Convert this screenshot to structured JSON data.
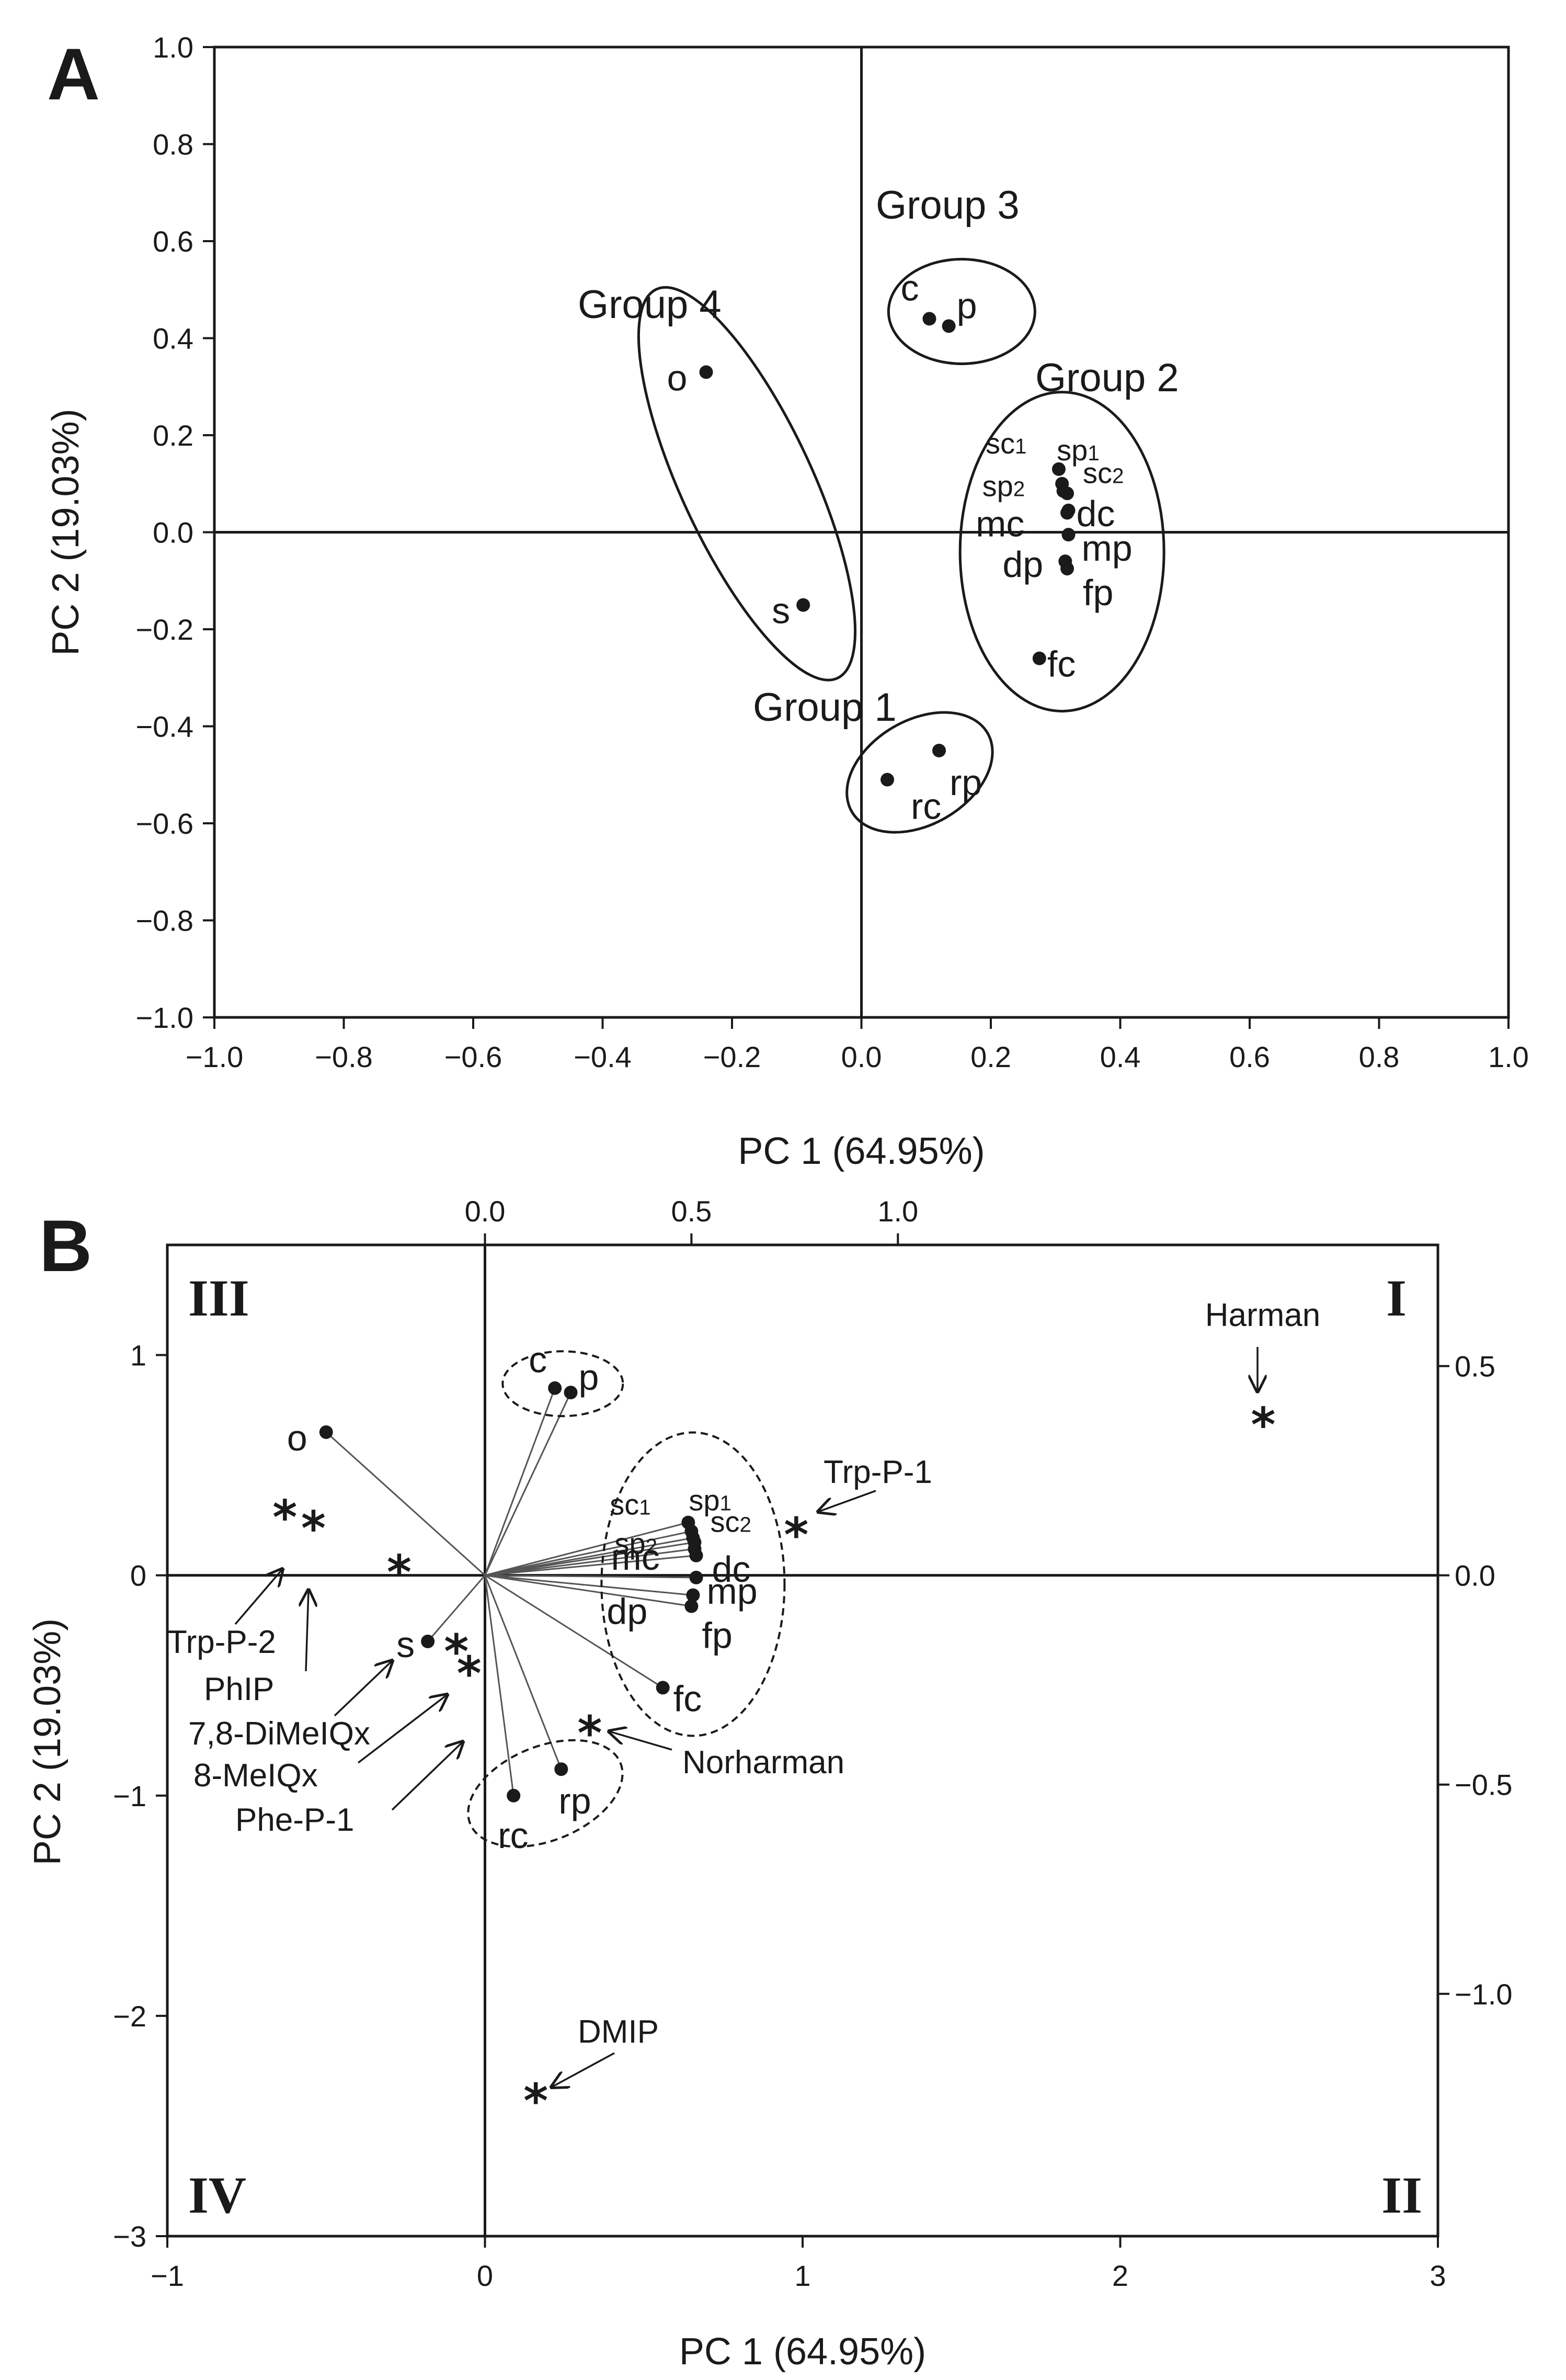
{
  "chart_data": [
    {
      "panel": "A",
      "type": "scatter",
      "xlabel": "PC 1 (64.95%)",
      "ylabel": "PC 2 (19.03%)",
      "xlim": [
        -1.0,
        1.0
      ],
      "ylim": [
        -1.0,
        1.0
      ],
      "x_ticks": [
        "−1.0",
        "−0.8",
        "−0.6",
        "−0.4",
        "−0.2",
        "0.0",
        "0.2",
        "0.4",
        "0.6",
        "0.8",
        "1.0"
      ],
      "y_ticks": [
        "1.0",
        "0.8",
        "0.6",
        "0.4",
        "0.2",
        "0.0",
        "−0.2",
        "−0.4",
        "−0.6",
        "−0.8",
        "−1.0"
      ],
      "points": [
        {
          "label": "c",
          "x": 0.105,
          "y": 0.44
        },
        {
          "label": "p",
          "x": 0.135,
          "y": 0.425
        },
        {
          "label": "o",
          "x": -0.24,
          "y": 0.33
        },
        {
          "label": "s",
          "x": -0.09,
          "y": -0.15
        },
        {
          "label": "sc1",
          "x": 0.305,
          "y": 0.13
        },
        {
          "label": "sp1",
          "x": 0.31,
          "y": 0.1
        },
        {
          "label": "sp2",
          "x": 0.312,
          "y": 0.085
        },
        {
          "label": "sc2",
          "x": 0.318,
          "y": 0.08
        },
        {
          "label": "dc",
          "x": 0.32,
          "y": 0.045
        },
        {
          "label": "mc",
          "x": 0.318,
          "y": 0.04
        },
        {
          "label": "mp",
          "x": 0.32,
          "y": -0.005
        },
        {
          "label": "dp",
          "x": 0.315,
          "y": -0.06
        },
        {
          "label": "fp",
          "x": 0.318,
          "y": -0.075
        },
        {
          "label": "fc",
          "x": 0.275,
          "y": -0.26
        },
        {
          "label": "rc",
          "x": 0.04,
          "y": -0.51
        },
        {
          "label": "rp",
          "x": 0.12,
          "y": -0.45
        }
      ],
      "groups": [
        "Group 1",
        "Group 2",
        "Group 3",
        "Group 4"
      ]
    },
    {
      "panel": "B",
      "type": "scatter",
      "xlabel": "PC 1 (64.95%)",
      "ylabel": "PC 2 (19.03%)",
      "xlim": [
        -1,
        3
      ],
      "ylim": [
        -3,
        1.5
      ],
      "x_ticks": [
        "−1",
        "0",
        "1",
        "2",
        "3"
      ],
      "y_ticks": [
        "1",
        "0",
        "−1",
        "−2",
        "−3"
      ],
      "top_ticks": [
        "0.0",
        "0.5",
        "1.0"
      ],
      "right_ticks": [
        "0.5",
        "0.0",
        "−0.5",
        "−1.0"
      ],
      "quadrants": [
        "I",
        "II",
        "III",
        "IV"
      ],
      "points": [
        {
          "label": "c",
          "x": 0.22,
          "y": 0.85
        },
        {
          "label": "p",
          "x": 0.27,
          "y": 0.83
        },
        {
          "label": "o",
          "x": -0.5,
          "y": 0.65
        },
        {
          "label": "s",
          "x": -0.18,
          "y": -0.3
        },
        {
          "label": "sc1",
          "x": 0.64,
          "y": 0.24
        },
        {
          "label": "sp1",
          "x": 0.65,
          "y": 0.2
        },
        {
          "label": "sp2",
          "x": 0.655,
          "y": 0.17
        },
        {
          "label": "sc2",
          "x": 0.66,
          "y": 0.15
        },
        {
          "label": "dc",
          "x": 0.665,
          "y": 0.09
        },
        {
          "label": "mc",
          "x": 0.66,
          "y": 0.12
        },
        {
          "label": "mp",
          "x": 0.665,
          "y": -0.01
        },
        {
          "label": "dp",
          "x": 0.655,
          "y": -0.09
        },
        {
          "label": "fp",
          "x": 0.65,
          "y": -0.14
        },
        {
          "label": "fc",
          "x": 0.56,
          "y": -0.51
        },
        {
          "label": "rc",
          "x": 0.09,
          "y": -1.0
        },
        {
          "label": "rp",
          "x": 0.24,
          "y": -0.88
        }
      ],
      "variables": [
        {
          "label": "Harman",
          "x": 2.45,
          "y": 0.7
        },
        {
          "label": "Trp-P-1",
          "x": 0.98,
          "y": 0.2
        },
        {
          "label": "Norharman",
          "x": 0.33,
          "y": -0.7
        },
        {
          "label": "DMIP",
          "x": 0.16,
          "y": -2.37
        },
        {
          "label": "Trp-P-2",
          "x": -0.63,
          "y": 0.28
        },
        {
          "label": "PhIP",
          "x": -0.54,
          "y": 0.23
        },
        {
          "label": "7,8-DiMeIQx",
          "x": -0.27,
          "y": 0.03
        },
        {
          "label": "8-MeIQx",
          "x": -0.09,
          "y": -0.33
        },
        {
          "label": "Phe-P-1",
          "x": -0.05,
          "y": -0.43
        }
      ]
    }
  ]
}
